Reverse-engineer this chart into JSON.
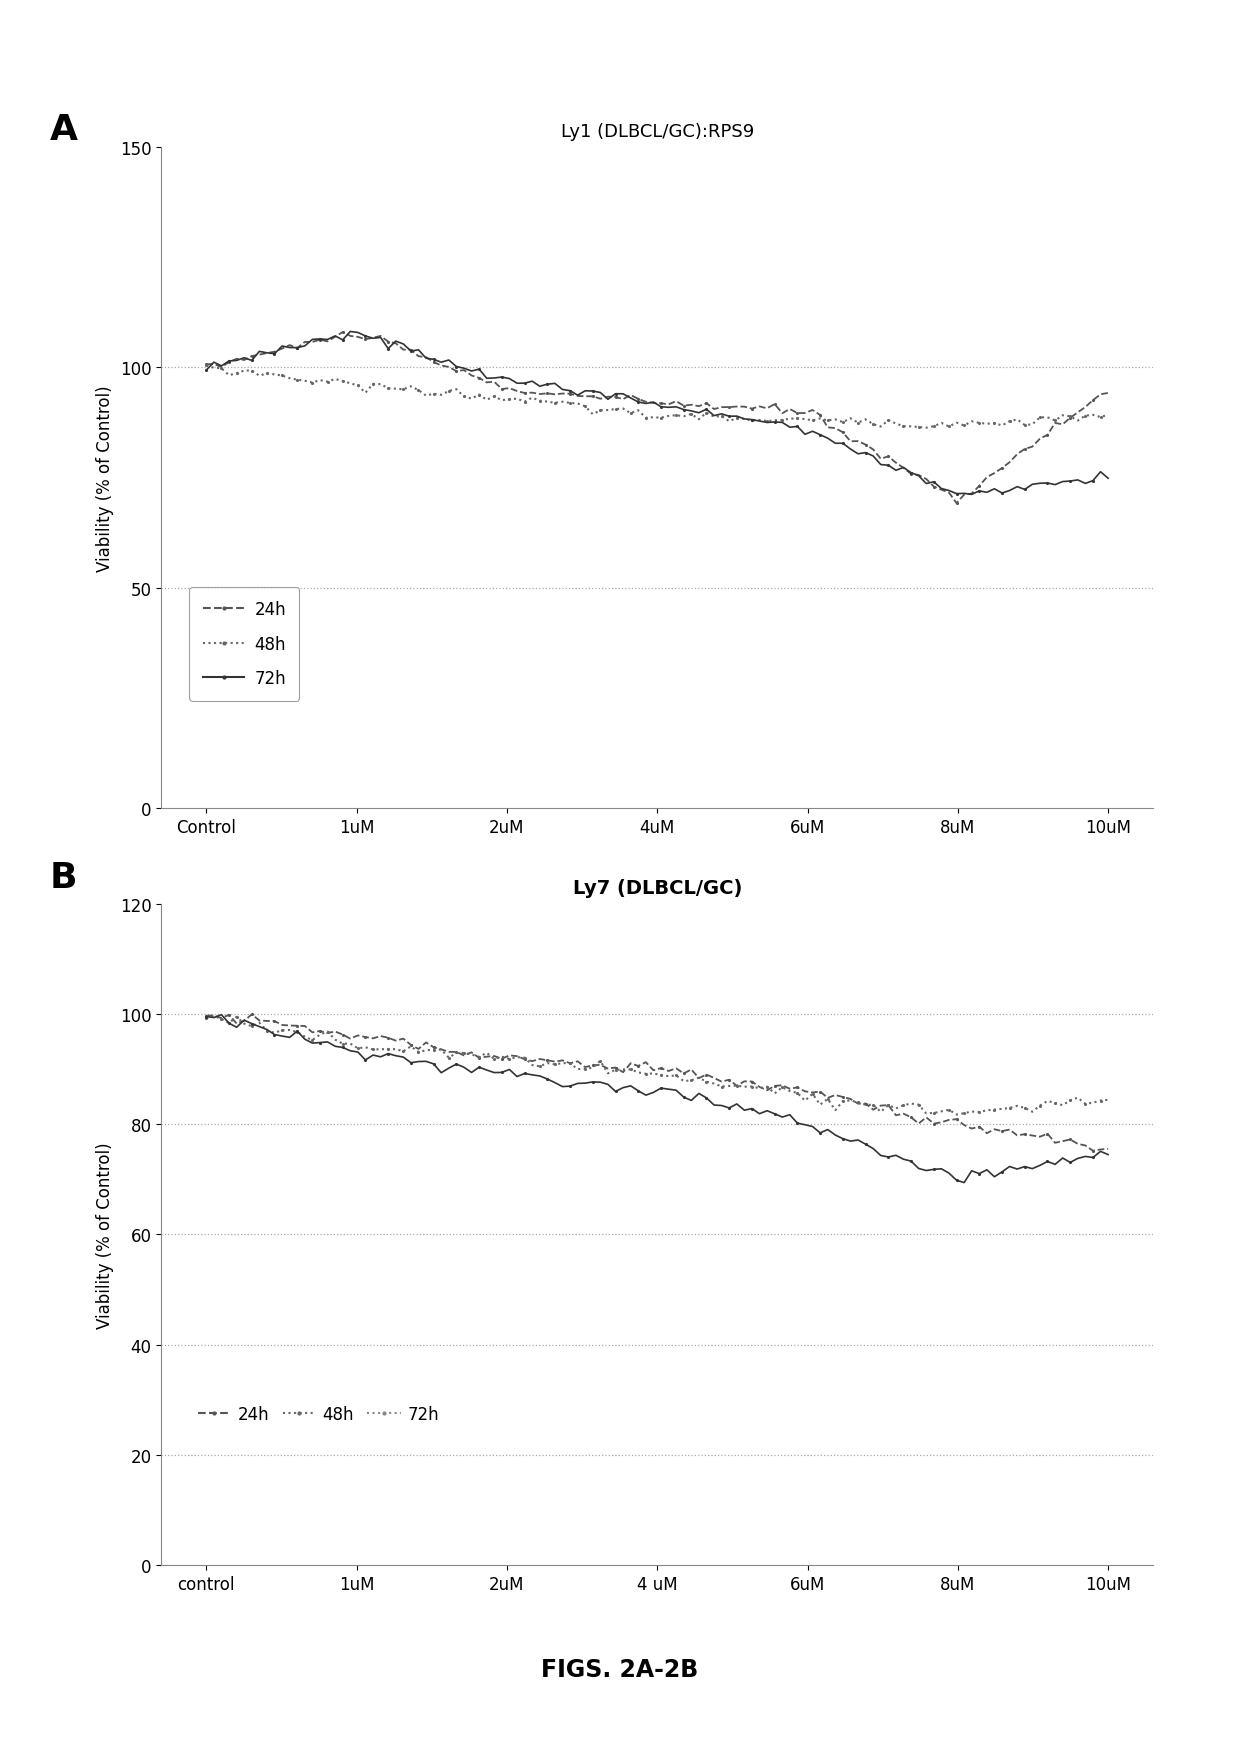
{
  "panel_A": {
    "title": "Ly1 (DLBCL/GC):RPS9",
    "ylabel": "Viability (% of Control)",
    "xlabels": [
      "Control",
      "1uM",
      "2uM",
      "4uM",
      "6uM",
      "8uM",
      "10uM"
    ],
    "ylim": [
      0,
      150
    ],
    "yticks": [
      0,
      50,
      100,
      150
    ],
    "series_24h": [
      100,
      108,
      95,
      92,
      90,
      70,
      95
    ],
    "series_48h": [
      100,
      96,
      93,
      89,
      88,
      87,
      89
    ],
    "series_72h": [
      100,
      108,
      97,
      92,
      86,
      71,
      75
    ],
    "hlines": [
      50,
      100
    ]
  },
  "panel_B": {
    "title": "Ly7 (DLBCL/GC)",
    "ylabel": "Viability (% of Control)",
    "xlabels": [
      "control",
      "1uM",
      "2uM",
      "4 uM",
      "6uM",
      "8uM",
      "10uM"
    ],
    "ylim": [
      0,
      120
    ],
    "yticks": [
      0,
      20,
      40,
      60,
      80,
      100,
      120
    ],
    "series_24h": [
      100,
      96,
      92,
      90,
      86,
      80,
      76
    ],
    "series_48h": [
      100,
      94,
      92,
      89,
      85,
      82,
      85
    ],
    "series_72h": [
      100,
      93,
      89,
      86,
      80,
      70,
      75
    ],
    "hlines": [
      20,
      40,
      60,
      80,
      100
    ]
  },
  "figure_label": "FIGS. 2A-2B",
  "bg_color": "#ffffff",
  "line_color": "#555555",
  "grid_color": "#aaaaaa"
}
